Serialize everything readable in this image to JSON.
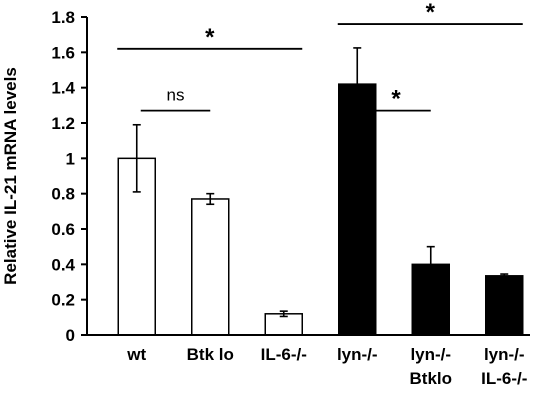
{
  "chart_data": {
    "type": "bar",
    "ylabel": "Relative IL-21 mRNA levels",
    "xlabel": "",
    "title": "",
    "ylim": [
      0,
      1.8
    ],
    "yticks": [
      "0",
      "0.2",
      "0.4",
      "0.6",
      "0.8",
      "1",
      "1.2",
      "1.4",
      "1.6",
      "1.8"
    ],
    "grid": false,
    "legend": "none",
    "categories": [
      [
        "wt"
      ],
      [
        "Btk lo"
      ],
      [
        "IL-6-/-"
      ],
      [
        "lyn-/-"
      ],
      [
        "lyn-/-",
        "Btklo"
      ],
      [
        "lyn-/-",
        "IL-6-/-"
      ]
    ],
    "values": [
      1.0,
      0.77,
      0.12,
      1.42,
      0.4,
      0.335
    ],
    "errors": [
      0.19,
      0.03,
      0.015,
      0.205,
      0.1,
      0.01
    ],
    "bar_colors": [
      "#ffffff",
      "#ffffff",
      "#ffffff",
      "#000000",
      "#000000",
      "#000000"
    ],
    "significance": [
      {
        "label": "*",
        "y": 1.62,
        "from": 0,
        "to": 2
      },
      {
        "label": "ns",
        "y": 1.27,
        "from": 0,
        "to": 1
      },
      {
        "label": "*",
        "y": 1.76,
        "from": 3,
        "to": 5
      },
      {
        "label": "*",
        "y": 1.27,
        "from": 3,
        "to": 4
      }
    ]
  }
}
